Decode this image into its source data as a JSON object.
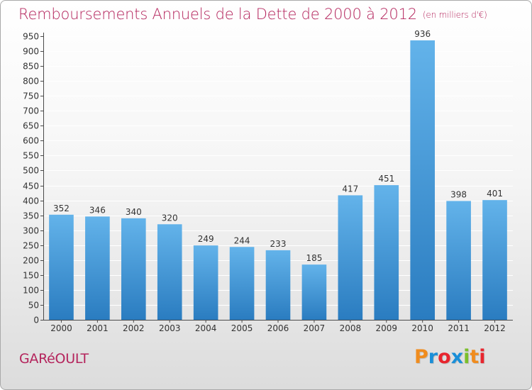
{
  "title": "Remboursements Annuels de la Dette de 2000 à 2012",
  "unit": "(en milliers d'€)",
  "commune": "GARéOULT",
  "logo": {
    "letters": [
      "P",
      "r",
      "o",
      "x",
      "i",
      "t",
      "i"
    ],
    "colors": [
      "#f08c1e",
      "#1a8fd8",
      "#e8252e",
      "#1a8fd8",
      "#7bbf2a",
      "#f08c1e",
      "#e8252e"
    ]
  },
  "colors": {
    "bar_top": "#63b3ea",
    "bar_bottom": "#2a7cc0",
    "title": "#b4245c"
  },
  "chart_data": {
    "type": "bar",
    "categories": [
      "2000",
      "2001",
      "2002",
      "2003",
      "2004",
      "2005",
      "2006",
      "2007",
      "2008",
      "2009",
      "2010",
      "2011",
      "2012"
    ],
    "values": [
      352,
      346,
      340,
      320,
      249,
      244,
      233,
      185,
      417,
      451,
      936,
      398,
      401
    ],
    "ylim": [
      0,
      950
    ],
    "yticks": [
      0,
      50,
      100,
      150,
      200,
      250,
      300,
      350,
      400,
      450,
      500,
      550,
      600,
      650,
      700,
      750,
      800,
      850,
      900,
      950
    ],
    "grid": true,
    "data_labels": true
  }
}
